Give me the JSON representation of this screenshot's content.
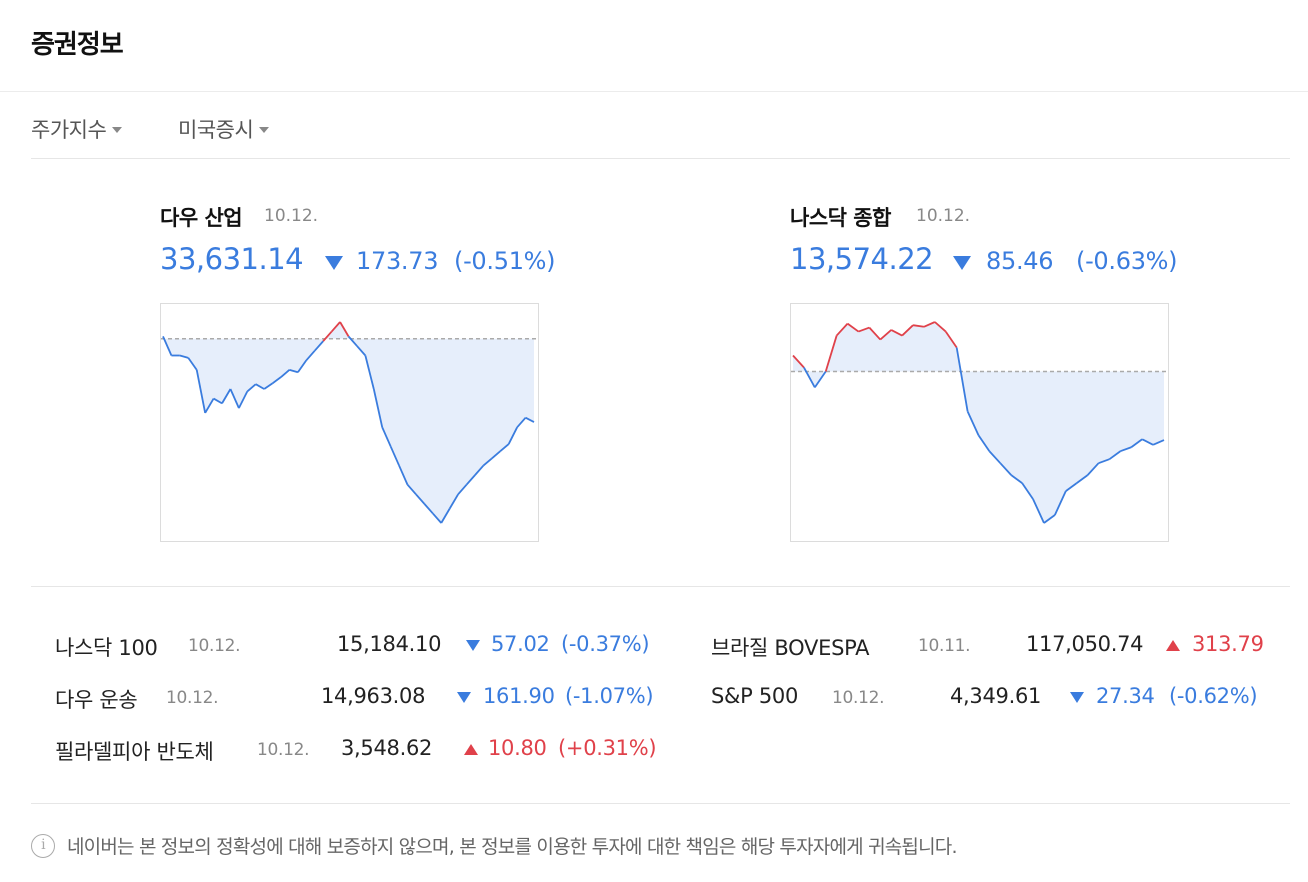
{
  "header": {
    "title": "증권정보"
  },
  "tabs": [
    {
      "label": "주가지수"
    },
    {
      "label": "미국증시"
    }
  ],
  "featured": [
    {
      "name": "다우 산업",
      "date": "10.12.",
      "value": "33,631.14",
      "direction": "down",
      "change": "173.73",
      "pct": "(-0.51%)",
      "chart_data": {
        "type": "area",
        "baseline_color": "#aaaaaa",
        "up_color": "#e0414a",
        "down_color": "#3a7cde",
        "values": [
          33810,
          33770,
          33770,
          33765,
          33740,
          33650,
          33680,
          33670,
          33700,
          33660,
          33695,
          33710,
          33700,
          33712,
          33725,
          33740,
          33735,
          33760,
          33780,
          33800,
          33820,
          33840,
          33810,
          33790,
          33770,
          33700,
          33620,
          33580,
          33540,
          33500,
          33480,
          33460,
          33440,
          33420,
          33450,
          33480,
          33500,
          33520,
          33540,
          33555,
          33570,
          33585,
          33620,
          33640,
          33631
        ],
        "previous_close": 33805
      }
    },
    {
      "name": "나스닥 종합",
      "date": "10.12.",
      "value": "13,574.22",
      "direction": "down",
      "change": "85.46",
      "pct": "(-0.63%)",
      "chart_data": {
        "type": "area",
        "baseline_color": "#aaaaaa",
        "up_color": "#e0414a",
        "down_color": "#3a7cde",
        "values": [
          13680,
          13665,
          13640,
          13660,
          13705,
          13720,
          13710,
          13715,
          13700,
          13712,
          13705,
          13718,
          13716,
          13722,
          13710,
          13690,
          13610,
          13580,
          13560,
          13545,
          13530,
          13520,
          13500,
          13470,
          13480,
          13510,
          13520,
          13530,
          13545,
          13550,
          13560,
          13565,
          13575,
          13568,
          13574
        ],
        "previous_close": 13660
      }
    }
  ],
  "rows_left": [
    {
      "name": "나스닥 100",
      "date": "10.12.",
      "value": "15,184.10",
      "direction": "down",
      "change": "57.02",
      "pct": "(-0.37%)"
    },
    {
      "name": "다우 운송",
      "date": "10.12.",
      "value": "14,963.08",
      "direction": "down",
      "change": "161.90",
      "pct": "(-1.07%)"
    },
    {
      "name": "필라델피아 반도체",
      "date": "10.12.",
      "value": "3,548.62",
      "direction": "up",
      "change": "10.80",
      "pct": "(+0.31%)"
    }
  ],
  "rows_right": [
    {
      "name": "브라질 BOVESPA",
      "date": "10.11.",
      "value": "117,050.74",
      "direction": "up",
      "change": "313.79",
      "pct": ""
    },
    {
      "name": "S&P 500",
      "date": "10.12.",
      "value": "4,349.61",
      "direction": "down",
      "change": "27.34",
      "pct": "(-0.62%)"
    }
  ],
  "notice": {
    "text": "네이버는 본 정보의 정확성에 대해 보증하지 않으며, 본 정보를 이용한 투자에 대한 책임은 해당 투자자에게 귀속됩니다.",
    "icon": "info-icon"
  }
}
